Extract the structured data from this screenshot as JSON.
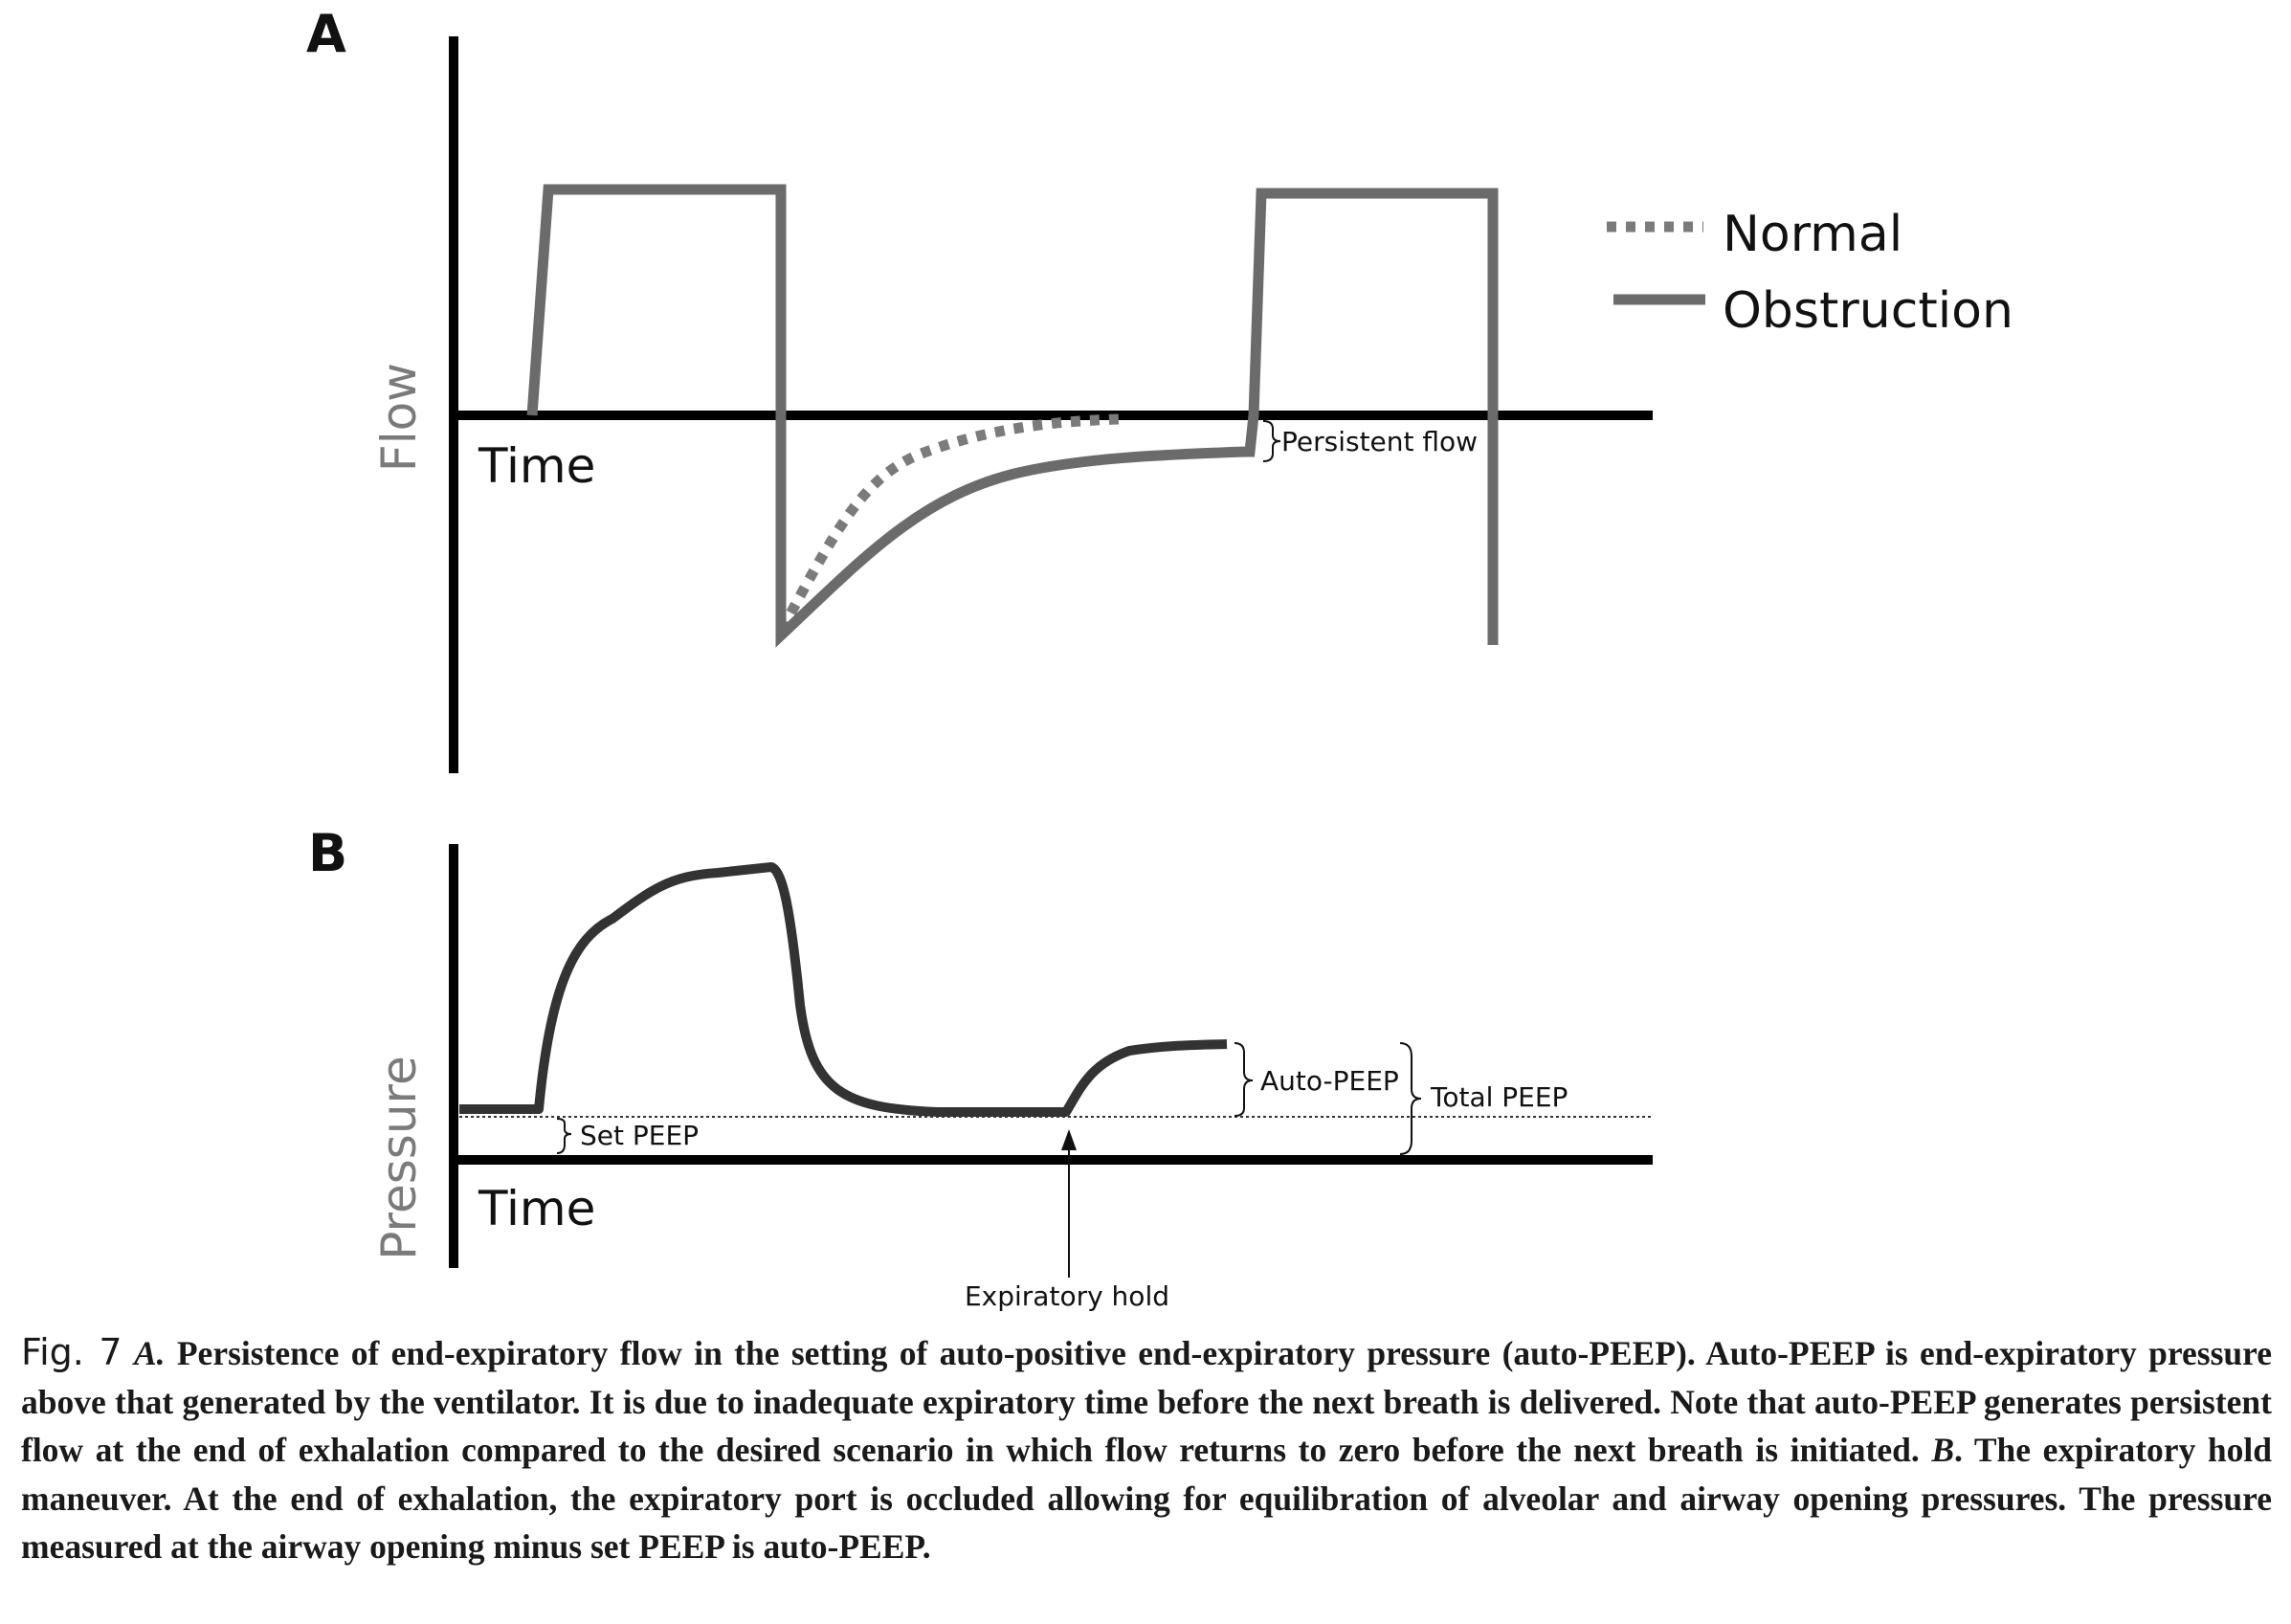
{
  "panel_a": {
    "letter": "A",
    "y_axis_label": "Flow",
    "x_axis_label": "Time",
    "legend": [
      {
        "label": "Normal",
        "style": "dotted"
      },
      {
        "label": "Obstruction",
        "style": "solid"
      }
    ],
    "annotation_persistent_flow": "Persistent flow"
  },
  "panel_b": {
    "letter": "B",
    "y_axis_label": "Pressure",
    "x_axis_label": "Time",
    "annotation_set_peep": "Set PEEP",
    "annotation_auto_peep": "Auto-PEEP",
    "annotation_total_peep": "Total PEEP",
    "annotation_expiratory_hold": "Expiratory hold"
  },
  "colors": {
    "obstruction_curve": "#6b6b6b",
    "normal_curve": "#7b7b7b",
    "pressure_curve": "#333333",
    "axes": "#000000"
  },
  "caption": {
    "fig_label": "Fig. 7",
    "part_a_letter": "A.",
    "part_a_text": "Persistence of end-expiratory flow in the setting of auto-positive end-expiratory pressure (auto-PEEP). Auto-PEEP is end-expiratory pressure above that generated by the ventilator. It is due to inadequate expiratory time before the next breath is delivered. Note that auto-PEEP generates persistent flow at the end of exhalation compared to the desired scenario in which flow returns to zero before the next breath is initiated.",
    "part_b_letter": "B",
    "part_b_text": ". The expiratory hold maneuver. At the end of exhalation, the expiratory port is occluded allowing for equilibration of alveolar and airway opening pressures. The pressure measured at the airway opening minus set PEEP is auto-PEEP."
  }
}
